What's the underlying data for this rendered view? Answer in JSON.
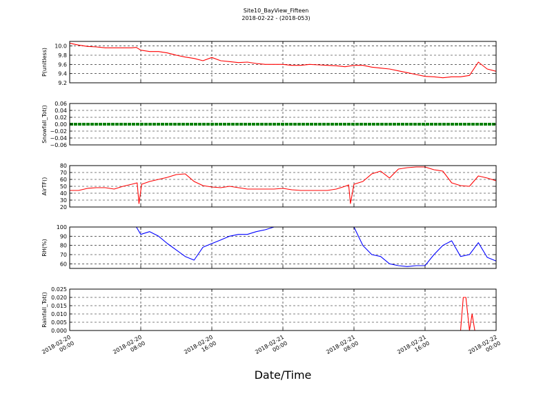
{
  "title": "Site10_BayView_Fifteen",
  "subtitle": "2018-02-22 - (2018-053)",
  "xlabel": "Date/Time",
  "chart_data": [
    {
      "type": "line",
      "ylabel": "P(unitless)",
      "ylim": [
        9.2,
        10.1
      ],
      "yticks": [
        9.2,
        9.4,
        9.6,
        9.8,
        10.0
      ],
      "ytick_labels": [
        "9.2",
        "9.4",
        "9.6",
        "9.8",
        "10.0"
      ],
      "grid": true,
      "color": "#ff0000",
      "x": [
        0,
        1,
        2,
        3,
        4,
        5,
        6,
        7,
        7.5,
        8,
        9,
        10,
        11,
        12,
        13,
        14,
        15,
        16,
        17,
        18,
        19,
        20,
        21,
        22,
        23,
        24,
        25,
        26,
        27,
        28,
        29,
        30,
        31,
        32,
        33,
        34,
        35,
        36,
        37,
        38,
        39,
        40,
        41,
        42,
        43,
        44,
        45,
        46,
        47,
        48
      ],
      "y": [
        10.06,
        10.02,
        9.99,
        9.98,
        9.96,
        9.96,
        9.96,
        9.96,
        9.97,
        9.91,
        9.88,
        9.88,
        9.85,
        9.8,
        9.76,
        9.73,
        9.68,
        9.75,
        9.68,
        9.66,
        9.64,
        9.65,
        9.62,
        9.6,
        9.6,
        9.6,
        9.58,
        9.58,
        9.6,
        9.59,
        9.58,
        9.57,
        9.55,
        9.58,
        9.58,
        9.54,
        9.52,
        9.5,
        9.46,
        9.42,
        9.38,
        9.34,
        9.33,
        9.31,
        9.33,
        9.33,
        9.36,
        9.65,
        9.5,
        9.45
      ]
    },
    {
      "type": "line",
      "ylabel": "Snowfall_Tot()",
      "ylim": [
        -0.06,
        0.06
      ],
      "yticks": [
        -0.06,
        -0.04,
        -0.02,
        0.0,
        0.02,
        0.04,
        0.06
      ],
      "ytick_labels": [
        "−0.06",
        "−0.04",
        "−0.02",
        "0.00",
        "0.02",
        "0.04",
        "0.06"
      ],
      "grid": true,
      "color": "#008000",
      "x": [
        0,
        48
      ],
      "y": [
        0,
        0
      ]
    },
    {
      "type": "line",
      "ylabel": "AirTF()",
      "ylim": [
        20,
        80
      ],
      "yticks": [
        20,
        30,
        40,
        50,
        60,
        70,
        80
      ],
      "ytick_labels": [
        "20",
        "30",
        "40",
        "50",
        "60",
        "70",
        "80"
      ],
      "grid": true,
      "color": "#ff0000",
      "x": [
        0,
        1,
        2,
        3,
        4,
        5,
        6,
        7,
        7.6,
        7.8,
        8.1,
        9,
        10,
        11,
        12,
        13,
        14,
        15,
        16,
        17,
        18,
        19,
        20,
        21,
        22,
        23,
        24,
        25,
        26,
        27,
        28,
        29,
        30,
        31,
        31.4,
        31.6,
        32,
        33,
        34,
        35,
        36,
        37,
        38,
        39,
        40,
        41,
        42,
        43,
        44,
        45,
        46,
        47,
        48
      ],
      "y": [
        44,
        44,
        47,
        48,
        48,
        46,
        50,
        53,
        55,
        25,
        53,
        57,
        60,
        63,
        67,
        68,
        57,
        51,
        49,
        48,
        50,
        48,
        46,
        46,
        46,
        46,
        47,
        45,
        44,
        44,
        44,
        44,
        46,
        50,
        52,
        25,
        53,
        57,
        68,
        72,
        62,
        75,
        77,
        78,
        78,
        74,
        72,
        55,
        51,
        50,
        65,
        62,
        58
      ]
    },
    {
      "type": "line",
      "ylabel": "RH(%)",
      "ylim": [
        55,
        100
      ],
      "yticks": [
        60,
        70,
        80,
        90,
        100
      ],
      "ytick_labels": [
        "60",
        "70",
        "80",
        "90",
        "100"
      ],
      "grid": true,
      "color": "#0000ff",
      "x": [
        7.5,
        8,
        9,
        10,
        11,
        12,
        13,
        14,
        15,
        16,
        17,
        18,
        19,
        20,
        21,
        22,
        23,
        24.2,
        31,
        32,
        33,
        34,
        35,
        36,
        37,
        38,
        39,
        40,
        41,
        42,
        43,
        44,
        45,
        46,
        47,
        48
      ],
      "y": [
        100,
        92,
        95,
        90,
        82,
        75,
        68,
        64,
        78,
        82,
        86,
        90,
        92,
        92,
        95,
        97,
        100,
        100,
        100,
        100,
        80,
        70,
        68,
        60,
        58,
        57,
        58,
        58,
        70,
        80,
        85,
        68,
        70,
        83,
        67,
        63
      ]
    },
    {
      "type": "line",
      "ylabel": "Rainfall_Tot()",
      "ylim": [
        0,
        0.025
      ],
      "yticks": [
        0.0,
        0.005,
        0.01,
        0.015,
        0.02,
        0.025
      ],
      "ytick_labels": [
        "0.000",
        "0.005",
        "0.010",
        "0.015",
        "0.020",
        "0.025"
      ],
      "grid": true,
      "color": "#ff0000",
      "x": [
        0,
        44,
        44.3,
        44.6,
        45,
        45.3,
        45.6,
        48
      ],
      "y": [
        0,
        0,
        0.02,
        0.02,
        0,
        0.01,
        0,
        0
      ]
    }
  ],
  "xaxis": {
    "xlim": [
      0,
      48
    ],
    "ticks": [
      0,
      8,
      16,
      24,
      32,
      40,
      48
    ],
    "tick_labels": [
      [
        "2018-02-20",
        "00:00"
      ],
      [
        "2018-02-20",
        "08:00"
      ],
      [
        "2018-02-20",
        "16:00"
      ],
      [
        "2018-02-21",
        "00:00"
      ],
      [
        "2018-02-21",
        "08:00"
      ],
      [
        "2018-02-21",
        "16:00"
      ],
      [
        "2018-02-22",
        "00:00"
      ]
    ]
  }
}
